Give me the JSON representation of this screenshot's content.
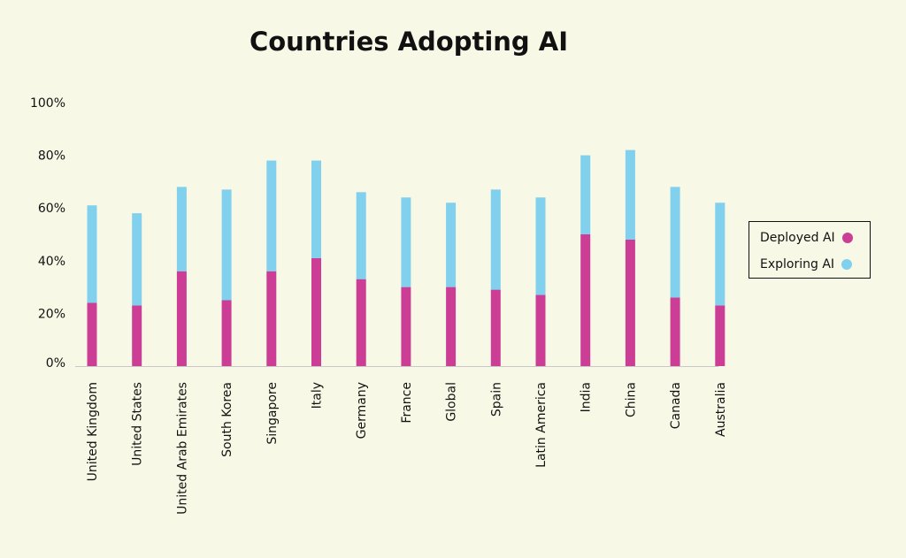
{
  "colors": {
    "deployed": "#cc3d95",
    "exploring": "#80d0ee",
    "axis": "#c8c8c8",
    "background": "#f7f9e6"
  },
  "chart_data": {
    "type": "bar",
    "stacked": true,
    "title": "Countries Adopting AI",
    "xlabel": "",
    "ylabel": "",
    "ylim": [
      0,
      100
    ],
    "yticks": [
      "0%",
      "20%",
      "40%",
      "60%",
      "80%",
      "100%"
    ],
    "ytick_values": [
      0,
      20,
      40,
      60,
      80,
      100
    ],
    "grid": false,
    "legend_position": "right",
    "categories": [
      "United Kingdom",
      "United States",
      "United Arab Emirates",
      "South Korea",
      "Singapore",
      "Italy",
      "Germany",
      "France",
      "Global",
      "Spain",
      "Latin America",
      "India",
      "China",
      "Canada",
      "Australia"
    ],
    "series": [
      {
        "name": "Deployed AI",
        "values": [
          24,
          23,
          36,
          25,
          36,
          41,
          33,
          30,
          30,
          29,
          27,
          50,
          48,
          26,
          23
        ]
      },
      {
        "name": "Exploring AI",
        "values": [
          37,
          35,
          32,
          42,
          42,
          37,
          33,
          34,
          32,
          38,
          37,
          30,
          34,
          42,
          39
        ]
      }
    ]
  }
}
